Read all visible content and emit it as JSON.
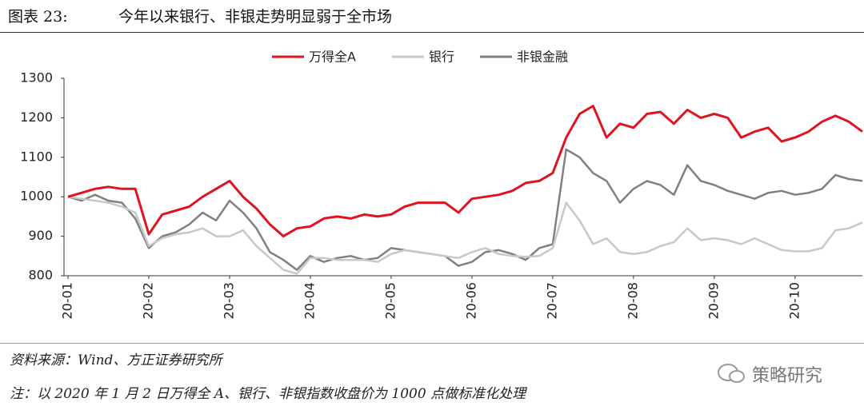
{
  "header": {
    "label": "图表 23:",
    "title": "今年以来银行、非银走势明显弱于全市场"
  },
  "chart_data": {
    "type": "line",
    "categories": [
      "20-01",
      null,
      null,
      null,
      null,
      null,
      "20-02",
      null,
      null,
      null,
      null,
      null,
      "20-03",
      null,
      null,
      null,
      null,
      null,
      "20-04",
      null,
      null,
      null,
      null,
      null,
      "20-05",
      null,
      null,
      null,
      null,
      null,
      "20-06",
      null,
      null,
      null,
      null,
      null,
      "20-07",
      null,
      null,
      null,
      null,
      null,
      "20-08",
      null,
      null,
      null,
      null,
      null,
      "20-09",
      null,
      null,
      null,
      null,
      null,
      "20-10",
      null,
      null,
      null,
      null,
      null
    ],
    "series": [
      {
        "name": "万得全A",
        "color": "#e0141e",
        "values": [
          1000,
          1010,
          1020,
          1025,
          1020,
          1020,
          905,
          955,
          965,
          975,
          1000,
          1020,
          1040,
          1000,
          970,
          930,
          900,
          920,
          925,
          945,
          950,
          945,
          955,
          950,
          955,
          975,
          985,
          985,
          985,
          960,
          995,
          1000,
          1005,
          1015,
          1035,
          1040,
          1060,
          1150,
          1210,
          1230,
          1150,
          1185,
          1175,
          1210,
          1215,
          1185,
          1220,
          1200,
          1210,
          1200,
          1150,
          1165,
          1175,
          1140,
          1150,
          1165,
          1190,
          1205,
          1190,
          1165
        ]
      },
      {
        "name": "银行",
        "color": "#c8c8c8",
        "values": [
          1000,
          995,
          990,
          985,
          975,
          960,
          875,
          895,
          905,
          910,
          920,
          900,
          900,
          915,
          875,
          845,
          815,
          805,
          845,
          845,
          840,
          840,
          840,
          835,
          855,
          865,
          860,
          855,
          850,
          845,
          860,
          870,
          855,
          850,
          848,
          850,
          870,
          985,
          940,
          880,
          895,
          860,
          855,
          860,
          875,
          885,
          920,
          890,
          895,
          890,
          880,
          895,
          880,
          865,
          862,
          862,
          870,
          915,
          920,
          935
        ]
      },
      {
        "name": "非银金融",
        "color": "#808080",
        "values": [
          1000,
          990,
          1005,
          990,
          985,
          945,
          870,
          900,
          910,
          930,
          960,
          940,
          990,
          960,
          920,
          860,
          840,
          815,
          850,
          835,
          845,
          850,
          840,
          845,
          870,
          865,
          860,
          855,
          850,
          825,
          835,
          860,
          865,
          855,
          840,
          870,
          880,
          1120,
          1100,
          1060,
          1040,
          985,
          1020,
          1040,
          1030,
          1005,
          1080,
          1040,
          1030,
          1015,
          1005,
          995,
          1010,
          1015,
          1005,
          1010,
          1020,
          1055,
          1045,
          1040
        ]
      }
    ],
    "ylim": [
      800,
      1300
    ],
    "yticks": [
      800,
      900,
      1000,
      1100,
      1200,
      1300
    ]
  },
  "footer": {
    "source": "资料来源：Wind、方正证券研究所",
    "note": "注：以 2020 年 1 月 2 日万得全 A、银行、非银指数收盘价为 1000 点做标准化处理",
    "watermark": "策略研究"
  }
}
